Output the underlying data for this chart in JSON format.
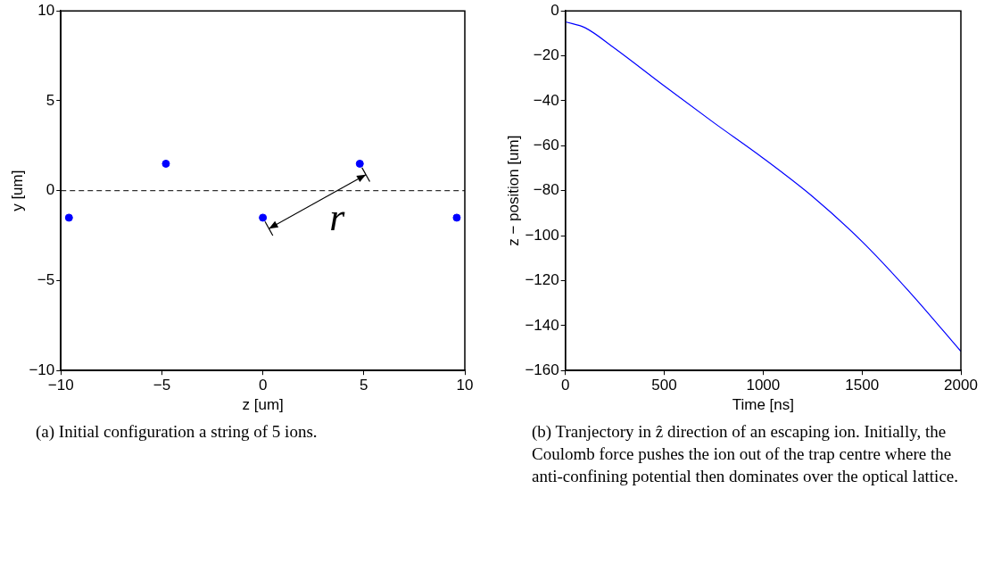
{
  "chart_data": [
    {
      "type": "scatter",
      "xlabel": "z [um]",
      "ylabel": "y [um]",
      "x": [
        -9.6,
        -4.8,
        0,
        4.8,
        9.6
      ],
      "values": [
        -1.5,
        1.5,
        -1.5,
        1.5,
        -1.5
      ],
      "color": "#0000ff",
      "marker": "circle",
      "xlim": [
        -10,
        10
      ],
      "ylim": [
        -10,
        10
      ],
      "xticks": [
        {
          "value": -10,
          "label": "−10"
        },
        {
          "value": -5,
          "label": "−5"
        },
        0,
        5,
        10
      ],
      "yticks": [
        {
          "value": -10,
          "label": "−10"
        },
        {
          "value": -5,
          "label": "−5"
        },
        0,
        5,
        10
      ],
      "ref_lines": [
        {
          "axis": "y",
          "value": 0,
          "color": "#000000",
          "line_style": "dashed"
        }
      ],
      "annotations": [
        "r",
        "(a) Initial configuration a string of 5 ions."
      ]
    },
    {
      "type": "line",
      "xlabel": "Time [ns]",
      "ylabel": "z − position [um]",
      "x": [
        0,
        100,
        250,
        500,
        750,
        1000,
        1250,
        1500,
        1750,
        2000
      ],
      "values": [
        -4.9,
        -7.5,
        -16.7,
        -33.4,
        -49.7,
        -65.5,
        -82.6,
        -102.6,
        -126,
        -151.5
      ],
      "color": "#0000ff",
      "marker": "none",
      "xlim": [
        0,
        2000
      ],
      "ylim": [
        -160,
        0
      ],
      "xticks": [
        0,
        500,
        1000,
        1500,
        2000
      ],
      "yticks": [
        {
          "value": -160,
          "label": "−160"
        },
        {
          "value": -140,
          "label": "−140"
        },
        {
          "value": -120,
          "label": "−120"
        },
        {
          "value": -100,
          "label": "−100"
        },
        {
          "value": -80,
          "label": "−80"
        },
        {
          "value": -60,
          "label": "−60"
        },
        {
          "value": -40,
          "label": "−40"
        },
        {
          "value": -20,
          "label": "−20"
        },
        0
      ],
      "annotations": [
        "(b) Tranjectory in ẑ direction of an escaping ion. Initially, the Coulomb force pushes the ion out of the trap centre where the anti-confining potential then dominates over the optical lattice."
      ]
    }
  ]
}
